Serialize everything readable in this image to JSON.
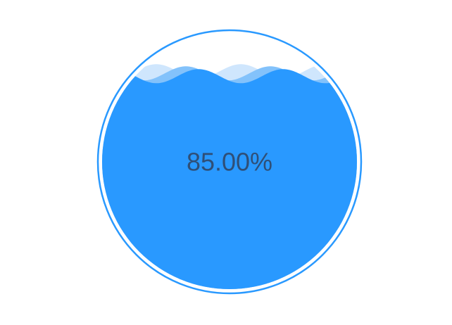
{
  "chart_data": {
    "type": "liquidfill",
    "value": 0.85,
    "label": "85.00%",
    "colors": {
      "liquid": "#2999ff",
      "back_wave": "#cfe6fd",
      "mid_wave": "#83c2fb",
      "outline": "#2999ff",
      "text": "#2f4f77",
      "background": "#ffffff"
    }
  }
}
